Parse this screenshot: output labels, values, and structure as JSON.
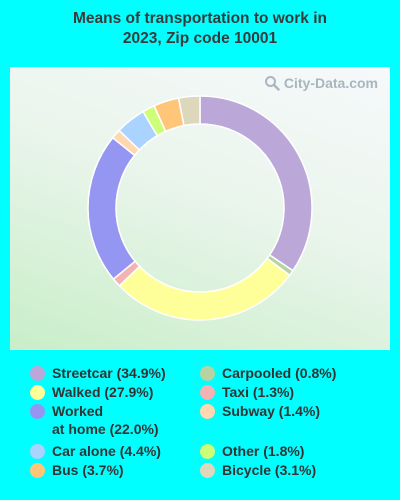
{
  "title": "Means of transportation to work in\n2023, Zip code 10001",
  "watermark": "City-Data.com",
  "colors": {
    "background": "#00ffff"
  },
  "chart_data": {
    "type": "pie",
    "title": "Means of transportation to work in 2023, Zip code 10001",
    "legend_position": "bottom",
    "donut": true,
    "unit": "%",
    "slices": [
      {
        "name": "Streetcar",
        "value": 34.9,
        "label": "Streetcar (34.9%)",
        "color": "#bba8d8"
      },
      {
        "name": "Carpooled",
        "value": 0.8,
        "label": "Carpooled (0.8%)",
        "color": "#b8d3a3"
      },
      {
        "name": "Walked",
        "value": 27.9,
        "label": "Walked (27.9%)",
        "color": "#ffff99"
      },
      {
        "name": "Taxi",
        "value": 1.3,
        "label": "Taxi (1.3%)",
        "color": "#f4b3b3"
      },
      {
        "name": "Worked at home",
        "value": 22.0,
        "label": "Worked\nat home (22.0%)",
        "color": "#9595f2"
      },
      {
        "name": "Subway",
        "value": 1.4,
        "label": "Subway (1.4%)",
        "color": "#ffd8b0"
      },
      {
        "name": "Car alone",
        "value": 4.4,
        "label": "Car alone (4.4%)",
        "color": "#aad4ff"
      },
      {
        "name": "Other",
        "value": 1.8,
        "label": "Other (1.8%)",
        "color": "#ccff77"
      },
      {
        "name": "Bus",
        "value": 3.7,
        "label": "Bus (3.7%)",
        "color": "#ffc67a"
      },
      {
        "name": "Bicycle",
        "value": 3.1,
        "label": "Bicycle (3.1%)",
        "color": "#ddd8bb"
      }
    ]
  }
}
